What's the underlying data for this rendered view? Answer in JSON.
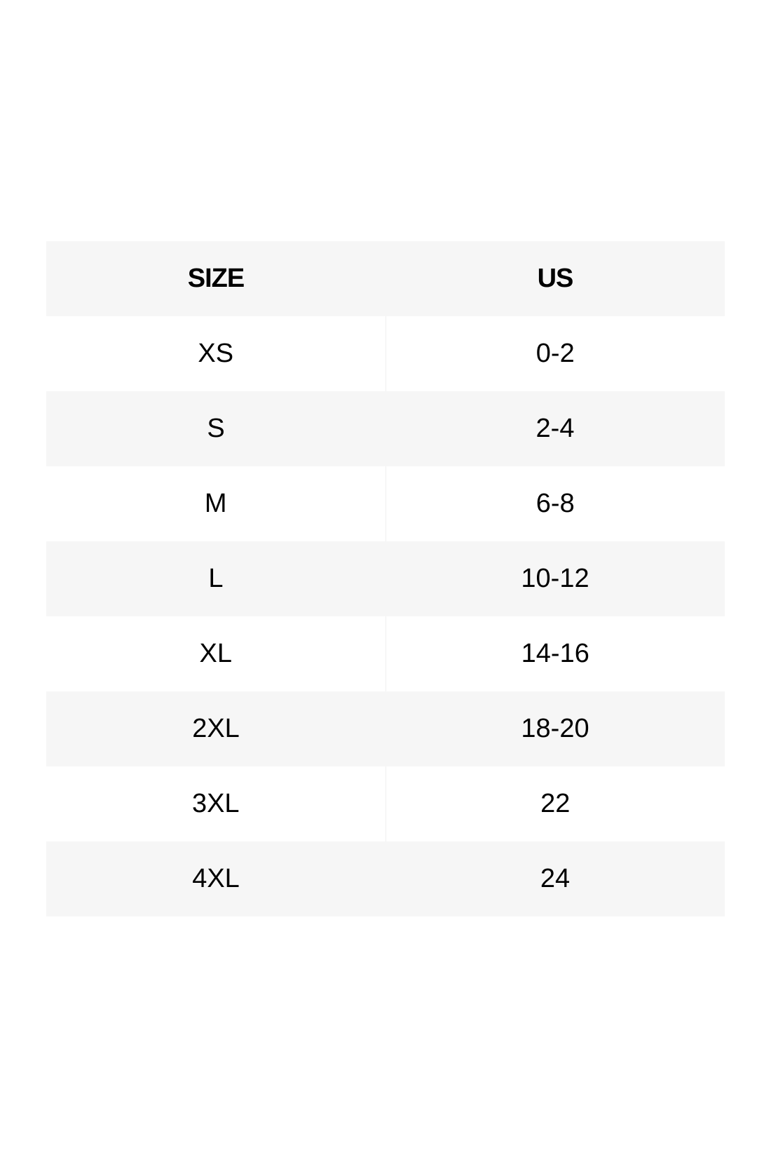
{
  "table": {
    "headers": [
      "SIZE",
      "US"
    ],
    "rows": [
      [
        "XS",
        "0-2"
      ],
      [
        "S",
        "2-4"
      ],
      [
        "M",
        "6-8"
      ],
      [
        "L",
        "10-12"
      ],
      [
        "XL",
        "14-16"
      ],
      [
        "2XL",
        "18-20"
      ],
      [
        "3XL",
        "22"
      ],
      [
        "4XL",
        "24"
      ]
    ]
  },
  "colors": {
    "row_shade": "#f6f6f6",
    "background": "#ffffff",
    "text": "#000000"
  }
}
